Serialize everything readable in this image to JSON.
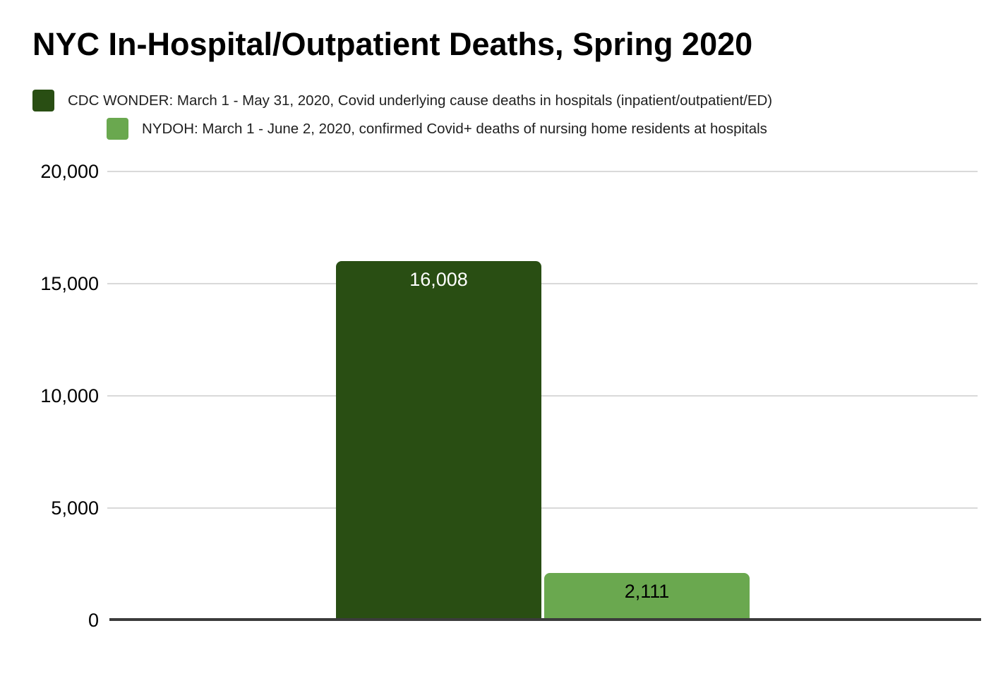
{
  "title": "NYC In-Hospital/Outpatient Deaths, Spring 2020",
  "legend": {
    "position": "top-left",
    "items": [
      {
        "label": "CDC WONDER: March 1 - May 31, 2020, Covid underlying cause deaths in hospitals (inpatient/outpatient/ED)",
        "color": "#294e13"
      },
      {
        "label": "NYDOH: March 1 - June 2, 2020, confirmed Covid+ deaths of nursing home residents at hospitals",
        "color": "#6aa84f"
      }
    ]
  },
  "chart_data": {
    "type": "bar",
    "title": "NYC In-Hospital/Outpatient Deaths, Spring 2020",
    "categories": [
      "CDC WONDER: March 1 - May 31, 2020, Covid underlying cause deaths in hospitals (inpatient/outpatient/ED)",
      "NYDOH: March 1 - June 2, 2020, confirmed Covid+ deaths of nursing home residents at hospitals"
    ],
    "values": [
      16008,
      2111
    ],
    "value_labels": [
      "16,008",
      "2,111"
    ],
    "bar_colors": [
      "#294e13",
      "#6aa84f"
    ],
    "bar_label_colors": [
      "#ffffff",
      "#000000"
    ],
    "xlabel": "",
    "ylabel": "",
    "ylim": [
      0,
      20000
    ],
    "y_ticks": [
      0,
      5000,
      10000,
      15000,
      20000
    ],
    "y_tick_labels": [
      "0",
      "5,000",
      "10,000",
      "15,000",
      "20,000"
    ],
    "grid": true,
    "legend_position": "top-left"
  },
  "colors": {
    "background": "#ffffff",
    "gridline": "#d9d9d9",
    "axis_line": "#3b3b3b",
    "title": "#000000",
    "tick_label": "#000000"
  }
}
